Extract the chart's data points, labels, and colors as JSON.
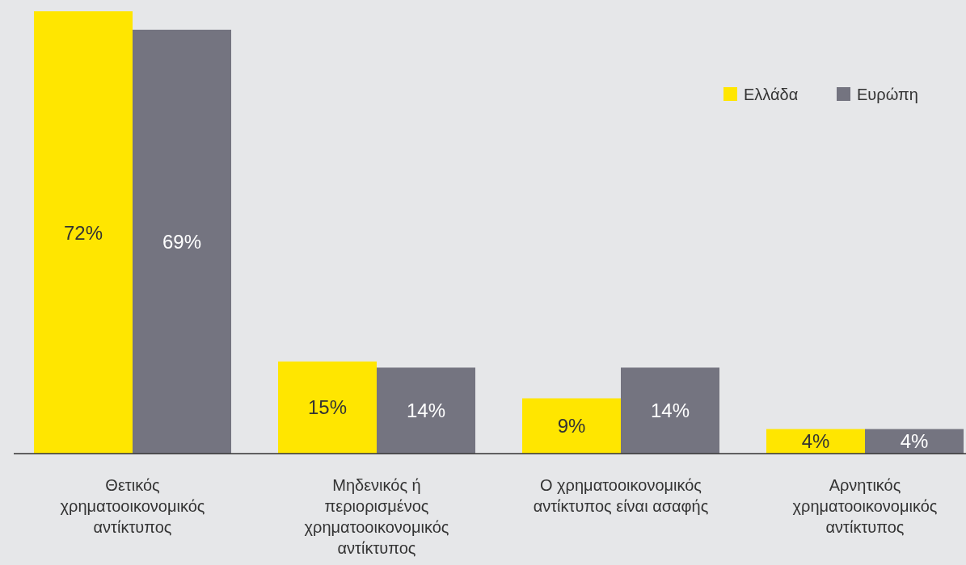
{
  "chart_data": {
    "type": "bar",
    "categories": [
      "Θετικός χρηματοοικονομικός αντίκτυπος",
      "Μηδενικός ή περιορισμένος χρηματοοικονομικός αντίκτυπος",
      "Ο χρηματοοικονομικός αντίκτυπος είναι ασαφής",
      "Αρνητικός χρηματοοικονομικός αντίκτυπος"
    ],
    "series": [
      {
        "name": "Ελλάδα",
        "color": "#ffe600",
        "values": [
          72,
          15,
          9,
          4
        ],
        "value_labels": [
          "72%",
          "15%",
          "9%",
          "4%"
        ]
      },
      {
        "name": "Ευρώπη",
        "color": "#747480",
        "values": [
          69,
          14,
          14,
          4
        ],
        "value_labels": [
          "69%",
          "14%",
          "14%",
          "4%"
        ]
      }
    ],
    "legend": "top right"
  }
}
